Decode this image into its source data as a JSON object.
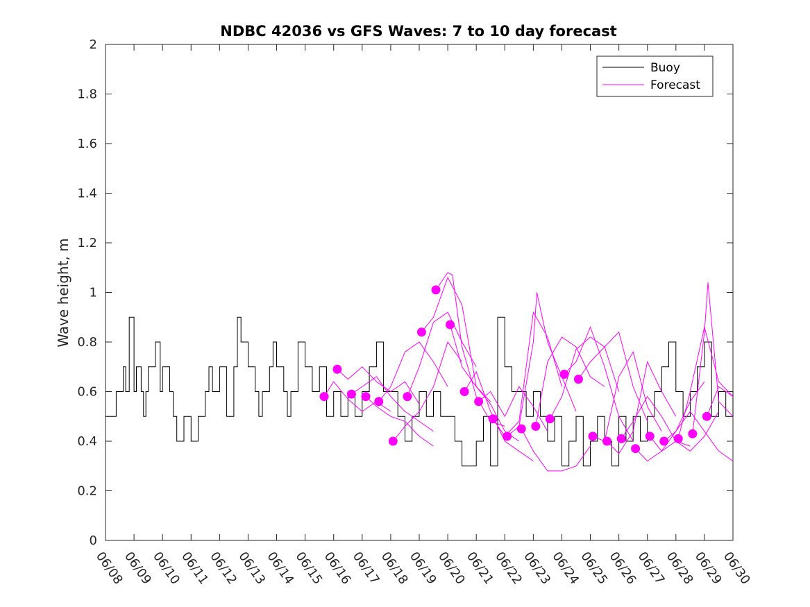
{
  "chart_data": {
    "type": "line",
    "title": "NDBC 42036 vs GFS Waves: 7 to 10 day forecast",
    "xlabel": "",
    "ylabel": "Wave height, m",
    "ylim": [
      0,
      2
    ],
    "yticks": [
      0,
      0.2,
      0.4,
      0.6,
      0.8,
      1,
      1.2,
      1.4,
      1.6,
      1.8,
      2
    ],
    "ytick_labels": [
      "0",
      "0.2",
      "0.4",
      "0.6",
      "0.8",
      "1",
      "1.2",
      "1.4",
      "1.6",
      "1.8",
      "2"
    ],
    "xlim": [
      "06/08",
      "06/30"
    ],
    "xtick_labels": [
      "06/08",
      "06/09",
      "06/10",
      "06/11",
      "06/12",
      "06/13",
      "06/14",
      "06/15",
      "06/16",
      "06/17",
      "06/18",
      "06/19",
      "06/20",
      "06/21",
      "06/22",
      "06/23",
      "06/24",
      "06/25",
      "06/26",
      "06/27",
      "06/28",
      "06/29",
      "06/30"
    ],
    "grid": false,
    "legend_position": "top-right",
    "colors": {
      "buoy": "#000000",
      "forecast": "#ff00ff"
    },
    "series": [
      {
        "name": "Buoy",
        "x": [
          "06/08 00:00",
          "06/08 09:00",
          "06/08 15:00",
          "06/08 17:00",
          "06/08 20:00",
          "06/09 00:00",
          "06/09 02:00",
          "06/09 06:00",
          "06/09 08:00",
          "06/09 10:00",
          "06/09 12:00",
          "06/09 18:00",
          "06/09 22:00",
          "06/10 00:00",
          "06/10 06:00",
          "06/10 09:00",
          "06/10 12:00",
          "06/10 18:00",
          "06/11 00:00",
          "06/11 06:00",
          "06/11 12:00",
          "06/11 15:00",
          "06/11 18:00",
          "06/12 00:00",
          "06/12 06:00",
          "06/12 12:00",
          "06/12 15:00",
          "06/12 18:00",
          "06/13 00:00",
          "06/13 06:00",
          "06/13 09:00",
          "06/13 12:00",
          "06/13 18:00",
          "06/13 21:00",
          "06/14 00:00",
          "06/14 06:00",
          "06/14 09:00",
          "06/14 12:00",
          "06/14 18:00",
          "06/15 00:00",
          "06/15 06:00",
          "06/15 12:00",
          "06/15 18:00",
          "06/16 00:00",
          "06/16 06:00",
          "06/16 12:00",
          "06/16 18:00",
          "06/17 00:00",
          "06/17 06:00",
          "06/17 12:00",
          "06/17 18:00",
          "06/18 00:00",
          "06/18 06:00",
          "06/18 12:00",
          "06/18 18:00",
          "06/19 00:00",
          "06/19 06:00",
          "06/19 12:00",
          "06/19 18:00",
          "06/20 00:00",
          "06/20 06:00",
          "06/20 12:00",
          "06/20 18:00",
          "06/21 00:00",
          "06/21 06:00",
          "06/21 12:00",
          "06/21 18:00",
          "06/22 00:00",
          "06/22 06:00",
          "06/22 12:00",
          "06/22 18:00",
          "06/23 00:00",
          "06/23 06:00",
          "06/23 12:00",
          "06/23 18:00",
          "06/24 00:00",
          "06/24 06:00",
          "06/24 12:00",
          "06/24 18:00",
          "06/25 00:00",
          "06/25 06:00",
          "06/25 12:00",
          "06/25 18:00",
          "06/26 00:00",
          "06/26 06:00",
          "06/26 12:00",
          "06/26 18:00",
          "06/27 00:00",
          "06/27 06:00",
          "06/27 12:00",
          "06/27 18:00",
          "06/28 00:00",
          "06/28 06:00",
          "06/28 12:00",
          "06/28 18:00",
          "06/29 00:00",
          "06/29 06:00",
          "06/29 12:00",
          "06/29 18:00",
          "06/30 00:00"
        ],
        "values": [
          0.5,
          0.6,
          0.7,
          0.6,
          0.9,
          0.6,
          0.7,
          0.6,
          0.5,
          0.6,
          0.7,
          0.8,
          0.6,
          0.7,
          0.6,
          0.5,
          0.4,
          0.5,
          0.4,
          0.5,
          0.6,
          0.7,
          0.6,
          0.7,
          0.5,
          0.7,
          0.9,
          0.8,
          0.7,
          0.6,
          0.5,
          0.6,
          0.7,
          0.8,
          0.7,
          0.6,
          0.5,
          0.6,
          0.8,
          0.7,
          0.6,
          0.7,
          0.5,
          0.6,
          0.5,
          0.6,
          0.5,
          0.6,
          0.7,
          0.8,
          0.6,
          0.6,
          0.5,
          0.4,
          0.5,
          0.6,
          0.5,
          0.6,
          0.5,
          0.5,
          0.4,
          0.3,
          0.3,
          0.4,
          0.5,
          0.3,
          0.9,
          0.7,
          0.6,
          0.6,
          0.5,
          0.6,
          0.5,
          0.4,
          0.5,
          0.3,
          0.4,
          0.5,
          0.3,
          0.4,
          0.5,
          0.4,
          0.3,
          0.5,
          0.4,
          0.5,
          0.4,
          0.5,
          0.6,
          0.7,
          0.8,
          0.6,
          0.5,
          0.6,
          0.7,
          0.8,
          0.5,
          0.6,
          0.5,
          0.6
        ]
      },
      {
        "name": "Forecast",
        "markers": [
          {
            "x": "06/15 16:00",
            "y": 0.58
          },
          {
            "x": "06/16 03:00",
            "y": 0.69
          },
          {
            "x": "06/16 15:00",
            "y": 0.59
          },
          {
            "x": "06/17 03:00",
            "y": 0.58
          },
          {
            "x": "06/17 14:00",
            "y": 0.56
          },
          {
            "x": "06/18 02:00",
            "y": 0.4
          },
          {
            "x": "06/18 14:00",
            "y": 0.58
          },
          {
            "x": "06/19 02:00",
            "y": 0.84
          },
          {
            "x": "06/19 14:00",
            "y": 1.01
          },
          {
            "x": "06/20 02:00",
            "y": 0.87
          },
          {
            "x": "06/20 14:00",
            "y": 0.6
          },
          {
            "x": "06/21 02:00",
            "y": 0.56
          },
          {
            "x": "06/21 14:00",
            "y": 0.49
          },
          {
            "x": "06/22 02:00",
            "y": 0.42
          },
          {
            "x": "06/22 14:00",
            "y": 0.45
          },
          {
            "x": "06/23 02:00",
            "y": 0.46
          },
          {
            "x": "06/23 14:00",
            "y": 0.49
          },
          {
            "x": "06/24 02:00",
            "y": 0.67
          },
          {
            "x": "06/24 14:00",
            "y": 0.65
          },
          {
            "x": "06/25 02:00",
            "y": 0.42
          },
          {
            "x": "06/25 14:00",
            "y": 0.4
          },
          {
            "x": "06/26 02:00",
            "y": 0.41
          },
          {
            "x": "06/26 14:00",
            "y": 0.37
          },
          {
            "x": "06/27 02:00",
            "y": 0.42
          },
          {
            "x": "06/27 14:00",
            "y": 0.4
          },
          {
            "x": "06/28 02:00",
            "y": 0.41
          },
          {
            "x": "06/28 14:00",
            "y": 0.43
          },
          {
            "x": "06/29 02:00",
            "y": 0.5
          }
        ],
        "runs": [
          {
            "x": [
              "06/15 16:00",
              "06/16 00:00",
              "06/16 12:00",
              "06/17 00:00",
              "06/17 12:00",
              "06/18 00:00"
            ],
            "values": [
              0.58,
              0.64,
              0.57,
              0.52,
              0.56,
              0.52
            ]
          },
          {
            "x": [
              "06/16 03:00",
              "06/16 12:00",
              "06/17 00:00",
              "06/17 12:00",
              "06/18 00:00",
              "06/18 12:00",
              "06/19 00:00"
            ],
            "values": [
              0.69,
              0.65,
              0.7,
              0.64,
              0.6,
              0.64,
              0.55
            ]
          },
          {
            "x": [
              "06/16 15:00",
              "06/17 00:00",
              "06/17 12:00",
              "06/18 00:00",
              "06/18 12:00",
              "06/19 00:00",
              "06/19 12:00"
            ],
            "values": [
              0.59,
              0.62,
              0.66,
              0.58,
              0.52,
              0.48,
              0.44
            ]
          },
          {
            "x": [
              "06/17 03:00",
              "06/17 12:00",
              "06/18 00:00",
              "06/18 12:00",
              "06/19 00:00",
              "06/19 12:00"
            ],
            "values": [
              0.58,
              0.54,
              0.5,
              0.48,
              0.42,
              0.38
            ]
          },
          {
            "x": [
              "06/17 14:00",
              "06/18 00:00",
              "06/18 12:00",
              "06/19 00:00",
              "06/19 12:00",
              "06/20 00:00"
            ],
            "values": [
              0.56,
              0.62,
              0.76,
              0.8,
              0.72,
              0.62
            ]
          },
          {
            "x": [
              "06/18 02:00",
              "06/18 12:00",
              "06/19 00:00",
              "06/19 12:00",
              "06/20 00:00",
              "06/20 12:00"
            ],
            "values": [
              0.4,
              0.46,
              0.52,
              0.62,
              0.8,
              0.72
            ]
          },
          {
            "x": [
              "06/18 14:00",
              "06/19 00:00",
              "06/19 12:00",
              "06/20 00:00",
              "06/20 12:00",
              "06/21 00:00"
            ],
            "values": [
              0.58,
              0.7,
              0.88,
              0.92,
              0.8,
              0.7
            ]
          },
          {
            "x": [
              "06/19 02:00",
              "06/19 12:00",
              "06/20 00:00",
              "06/20 12:00",
              "06/21 00:00",
              "06/21 12:00"
            ],
            "values": [
              0.84,
              0.9,
              1.06,
              0.95,
              0.62,
              0.56
            ]
          },
          {
            "x": [
              "06/19 14:00",
              "06/20 00:00",
              "06/20 04:00",
              "06/20 12:00",
              "06/21 00:00",
              "06/21 12:00",
              "06/22 00:00"
            ],
            "values": [
              1.01,
              1.08,
              1.07,
              0.78,
              0.58,
              0.48,
              0.46
            ]
          },
          {
            "x": [
              "06/20 02:00",
              "06/20 12:00",
              "06/21 00:00",
              "06/21 12:00",
              "06/22 00:00",
              "06/22 12:00"
            ],
            "values": [
              0.87,
              0.7,
              0.62,
              0.55,
              0.44,
              0.4
            ]
          },
          {
            "x": [
              "06/20 14:00",
              "06/21 00:00",
              "06/21 12:00",
              "06/22 00:00",
              "06/22 12:00",
              "06/23 00:00"
            ],
            "values": [
              0.6,
              0.68,
              0.52,
              0.4,
              0.36,
              0.32
            ]
          },
          {
            "x": [
              "06/21 02:00",
              "06/21 12:00",
              "06/22 00:00",
              "06/22 12:00",
              "06/23 00:00",
              "06/23 12:00"
            ],
            "values": [
              0.56,
              0.6,
              0.5,
              0.62,
              0.54,
              0.44
            ]
          },
          {
            "x": [
              "06/21 14:00",
              "06/22 00:00",
              "06/22 12:00",
              "06/23 00:00",
              "06/23 12:00",
              "06/24 00:00"
            ],
            "values": [
              0.49,
              0.42,
              0.48,
              0.92,
              0.82,
              0.62
            ]
          },
          {
            "x": [
              "06/22 02:00",
              "06/22 12:00",
              "06/23 00:00",
              "06/23 03:00",
              "06/23 12:00",
              "06/24 00:00",
              "06/24 12:00"
            ],
            "values": [
              0.42,
              0.46,
              0.8,
              1.0,
              0.8,
              0.66,
              0.52
            ]
          },
          {
            "x": [
              "06/22 14:00",
              "06/23 00:00",
              "06/23 12:00",
              "06/24 00:00",
              "06/24 12:00",
              "06/25 00:00"
            ],
            "values": [
              0.45,
              0.36,
              0.28,
              0.28,
              0.3,
              0.38
            ]
          },
          {
            "x": [
              "06/23 02:00",
              "06/23 12:00",
              "06/24 00:00",
              "06/24 12:00",
              "06/25 00:00",
              "06/25 12:00"
            ],
            "values": [
              0.46,
              0.72,
              0.82,
              0.78,
              0.66,
              0.62
            ]
          },
          {
            "x": [
              "06/23 14:00",
              "06/24 00:00",
              "06/24 12:00",
              "06/25 00:00",
              "06/25 12:00",
              "06/26 00:00"
            ],
            "values": [
              0.49,
              0.58,
              0.77,
              0.82,
              0.78,
              0.6
            ]
          },
          {
            "x": [
              "06/24 02:00",
              "06/24 12:00",
              "06/25 00:00",
              "06/25 12:00",
              "06/26 00:00",
              "06/26 12:00"
            ],
            "values": [
              0.67,
              0.72,
              0.86,
              0.7,
              0.5,
              0.4
            ]
          },
          {
            "x": [
              "06/24 14:00",
              "06/25 00:00",
              "06/25 12:00",
              "06/26 00:00",
              "06/26 12:00",
              "06/27 00:00"
            ],
            "values": [
              0.65,
              0.72,
              0.78,
              0.84,
              0.62,
              0.48
            ]
          },
          {
            "x": [
              "06/25 02:00",
              "06/25 12:00",
              "06/26 00:00",
              "06/26 12:00",
              "06/27 00:00",
              "06/27 12:00"
            ],
            "values": [
              0.42,
              0.4,
              0.66,
              0.76,
              0.54,
              0.44
            ]
          },
          {
            "x": [
              "06/25 14:00",
              "06/26 00:00",
              "06/26 12:00",
              "06/27 00:00",
              "06/27 12:00",
              "06/28 00:00"
            ],
            "values": [
              0.4,
              0.35,
              0.44,
              0.72,
              0.6,
              0.5
            ]
          },
          {
            "x": [
              "06/26 02:00",
              "06/26 12:00",
              "06/27 00:00",
              "06/27 12:00",
              "06/28 00:00",
              "06/28 12:00"
            ],
            "values": [
              0.41,
              0.48,
              0.58,
              0.5,
              0.4,
              0.38
            ]
          },
          {
            "x": [
              "06/26 14:00",
              "06/27 00:00",
              "06/27 12:00",
              "06/28 00:00",
              "06/28 12:00",
              "06/29 00:00"
            ],
            "values": [
              0.37,
              0.32,
              0.36,
              0.44,
              0.56,
              0.64
            ]
          },
          {
            "x": [
              "06/27 02:00",
              "06/27 12:00",
              "06/28 00:00",
              "06/28 12:00",
              "06/29 00:00",
              "06/29 12:00"
            ],
            "values": [
              0.42,
              0.36,
              0.4,
              0.36,
              0.42,
              0.52
            ]
          },
          {
            "x": [
              "06/27 14:00",
              "06/28 00:00",
              "06/28 12:00",
              "06/29 00:00",
              "06/29 12:00",
              "06/30 00:00"
            ],
            "values": [
              0.4,
              0.44,
              0.52,
              0.44,
              0.36,
              0.32
            ]
          },
          {
            "x": [
              "06/28 02:00",
              "06/28 12:00",
              "06/29 00:00",
              "06/29 12:00",
              "06/30 00:00"
            ],
            "values": [
              0.41,
              0.6,
              0.86,
              0.64,
              0.58
            ]
          },
          {
            "x": [
              "06/28 14:00",
              "06/29 00:00",
              "06/29 03:00",
              "06/29 12:00",
              "06/30 00:00"
            ],
            "values": [
              0.43,
              0.84,
              1.04,
              0.56,
              0.5
            ]
          },
          {
            "x": [
              "06/29 02:00",
              "06/29 12:00",
              "06/30 00:00"
            ],
            "values": [
              0.5,
              0.62,
              0.58
            ]
          }
        ]
      }
    ]
  }
}
